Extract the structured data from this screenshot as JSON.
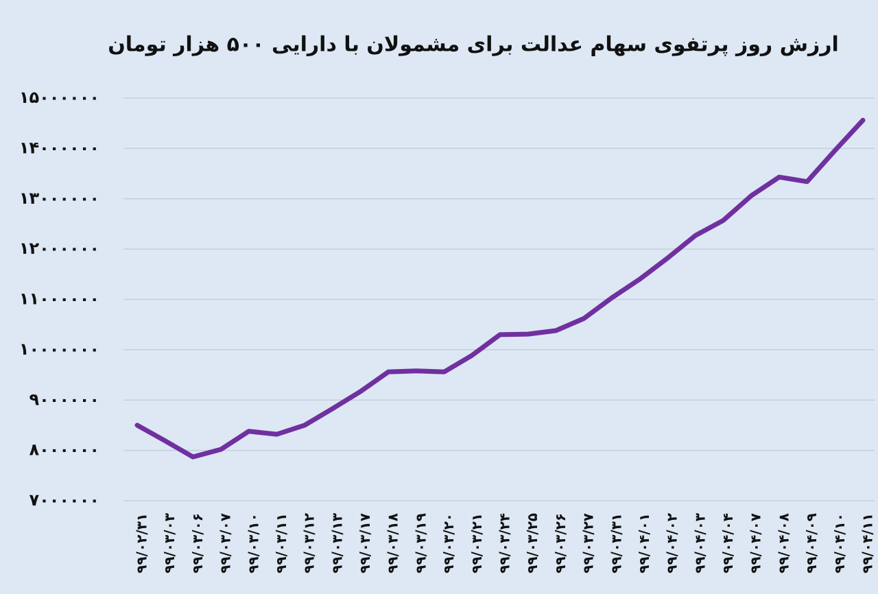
{
  "chart_data": {
    "type": "line",
    "title": "ارزش روز پرتفوی سهام عدالت برای مشمولان با دارایی ۵۰۰ هزار تومان",
    "categories": [
      "۹۹/۰۲/۳۱",
      "۹۹/۰۳/۰۳",
      "۹۹/۰۳/۰۶",
      "۹۹/۰۳/۰۷",
      "۹۹/۰۳/۱۰",
      "۹۹/۰۳/۱۱",
      "۹۹/۰۳/۱۲",
      "۹۹/۰۳/۱۳",
      "۹۹/۰۳/۱۷",
      "۹۹/۰۳/۱۸",
      "۹۹/۰۳/۱۹",
      "۹۹/۰۳/۲۰",
      "۹۹/۰۳/۲۱",
      "۹۹/۰۳/۲۴",
      "۹۹/۰۳/۲۵",
      "۹۹/۰۳/۲۶",
      "۹۹/۰۳/۲۷",
      "۹۹/۰۳/۳۱",
      "۹۹/۰۴/۰۱",
      "۹۹/۰۴/۰۲",
      "۹۹/۰۴/۰۳",
      "۹۹/۰۴/۰۴",
      "۹۹/۰۴/۰۷",
      "۹۹/۰۴/۰۸",
      "۹۹/۰۴/۰۹",
      "۹۹/۰۴/۱۰",
      "۹۹/۰۴/۱۱"
    ],
    "values": [
      8500000,
      8190000,
      7870000,
      8020000,
      8380000,
      8320000,
      8500000,
      8830000,
      9170000,
      9560000,
      9580000,
      9560000,
      9890000,
      10300000,
      10310000,
      10380000,
      10620000,
      11030000,
      11400000,
      11820000,
      12270000,
      12570000,
      13060000,
      13430000,
      13340000,
      13960000,
      14560000
    ],
    "color": "#7030a0",
    "ylim": [
      7000000,
      15000000
    ],
    "yticks": [
      {
        "value": 7000000,
        "label": "۷۰۰۰۰۰۰"
      },
      {
        "value": 8000000,
        "label": "۸۰۰۰۰۰۰"
      },
      {
        "value": 9000000,
        "label": "۹۰۰۰۰۰۰"
      },
      {
        "value": 10000000,
        "label": "۱۰۰۰۰۰۰۰"
      },
      {
        "value": 11000000,
        "label": "۱۱۰۰۰۰۰۰"
      },
      {
        "value": 12000000,
        "label": "۱۲۰۰۰۰۰۰"
      },
      {
        "value": 13000000,
        "label": "۱۳۰۰۰۰۰۰"
      },
      {
        "value": 14000000,
        "label": "۱۴۰۰۰۰۰۰"
      },
      {
        "value": 15000000,
        "label": "۱۵۰۰۰۰۰۰"
      }
    ],
    "grid": true
  }
}
